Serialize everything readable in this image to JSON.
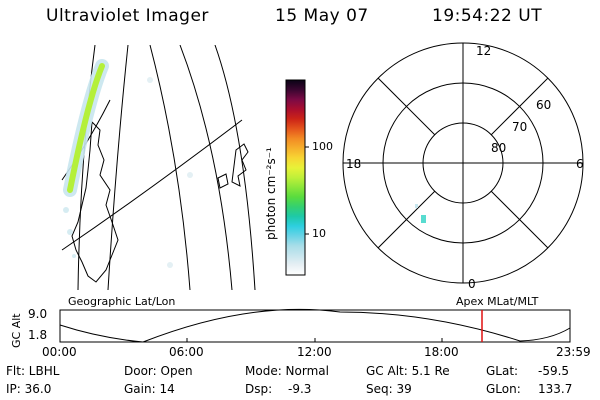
{
  "header": {
    "instrument": "Ultraviolet Imager",
    "date": "15 May 07",
    "time": "19:54:22 UT"
  },
  "map_label": "Geographic Lat/Lon",
  "polar": {
    "label": "Apex  MLat/MLT",
    "mlt_labels": {
      "top": "12",
      "left": "18",
      "right": "6",
      "bottom": "0"
    },
    "lat_labels": [
      "60",
      "70",
      "80"
    ]
  },
  "colorbar": {
    "unit_label": "photon cm⁻²s⁻¹",
    "tick_labels": [
      "100",
      "10"
    ],
    "colors": [
      "#ffffff",
      "#e8f0f4",
      "#c8e6ee",
      "#a8dde8",
      "#6ad3e6",
      "#2ecfe0",
      "#1ec9a8",
      "#34d070",
      "#59dc3e",
      "#8ce63a",
      "#bff039",
      "#e8f238",
      "#f7d633",
      "#f6b02c",
      "#f28a24",
      "#e4541c",
      "#cc2417",
      "#aa0e2e",
      "#7b0a45",
      "#3a0630",
      "#0a0316"
    ],
    "hot_color": "#b4f03a",
    "cyan_color": "#58dcd0"
  },
  "timeline": {
    "ylabel": "GC Alt",
    "ytick_labels": [
      "9.0",
      "1.8"
    ],
    "xtick_labels": [
      "00:00",
      "06:00",
      "12:00",
      "18:00",
      "23:59"
    ],
    "current_time_color": "#e01010"
  },
  "status": {
    "flt": "Flt: LBHL",
    "ip": "IP: 36.0",
    "door": "Door: Open",
    "gain": "Gain: 14",
    "mode": "Mode: Normal",
    "dsp_label": "Dsp:",
    "dsp_value": "-9.3",
    "gc_alt": "GC Alt: 5.1 Re",
    "seq": "Seq: 39",
    "glat_label": "GLat:",
    "glat_value": "-59.5",
    "glon_label": "GLon:",
    "glon_value": "133.7"
  }
}
